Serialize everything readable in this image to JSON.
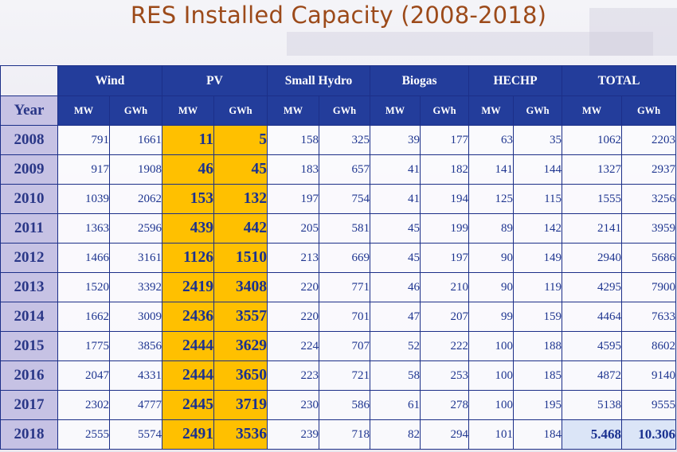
{
  "title": "RES Installed Capacity (2008-2018)",
  "year_label": "Year",
  "groups": [
    "Wind",
    "PV",
    "Small Hydro",
    "Biogas",
    "HECHP",
    "TOTAL"
  ],
  "units": [
    "MW",
    "GWh",
    "MW",
    "GWh",
    "MW",
    "GWh",
    "MW",
    "GWh",
    "MW",
    "GWh",
    "MW",
    "GWh"
  ],
  "colors": {
    "header": "#233d9b",
    "pv_highlight": "#ffc000",
    "year_cell": "#c6c2e4",
    "title": "#9c4a1a",
    "text": "#1e3590"
  },
  "rows": [
    {
      "year": "2008",
      "cells": [
        "791",
        "1661",
        "11",
        "5",
        "158",
        "325",
        "39",
        "177",
        "63",
        "35",
        "1062",
        "2203"
      ]
    },
    {
      "year": "2009",
      "cells": [
        "917",
        "1908",
        "46",
        "45",
        "183",
        "657",
        "41",
        "182",
        "141",
        "144",
        "1327",
        "2937"
      ]
    },
    {
      "year": "2010",
      "cells": [
        "1039",
        "2062",
        "153",
        "132",
        "197",
        "754",
        "41",
        "194",
        "125",
        "115",
        "1555",
        "3256"
      ]
    },
    {
      "year": "2011",
      "cells": [
        "1363",
        "2596",
        "439",
        "442",
        "205",
        "581",
        "45",
        "199",
        "89",
        "142",
        "2141",
        "3959"
      ]
    },
    {
      "year": "2012",
      "cells": [
        "1466",
        "3161",
        "1126",
        "1510",
        "213",
        "669",
        "45",
        "197",
        "90",
        "149",
        "2940",
        "5686"
      ]
    },
    {
      "year": "2013",
      "cells": [
        "1520",
        "3392",
        "2419",
        "3408",
        "220",
        "771",
        "46",
        "210",
        "90",
        "119",
        "4295",
        "7900"
      ]
    },
    {
      "year": "2014",
      "cells": [
        "1662",
        "3009",
        "2436",
        "3557",
        "220",
        "701",
        "47",
        "207",
        "99",
        "159",
        "4464",
        "7633"
      ]
    },
    {
      "year": "2015",
      "cells": [
        "1775",
        "3856",
        "2444",
        "3629",
        "224",
        "707",
        "52",
        "222",
        "100",
        "188",
        "4595",
        "8602"
      ]
    },
    {
      "year": "2016",
      "cells": [
        "2047",
        "4331",
        "2444",
        "3650",
        "223",
        "721",
        "58",
        "253",
        "100",
        "185",
        "4872",
        "9140"
      ]
    },
    {
      "year": "2017",
      "cells": [
        "2302",
        "4777",
        "2445",
        "3719",
        "230",
        "586",
        "61",
        "278",
        "100",
        "195",
        "5138",
        "9555"
      ]
    },
    {
      "year": "2018",
      "cells": [
        "2555",
        "5574",
        "2491",
        "3536",
        "239",
        "718",
        "82",
        "294",
        "101",
        "184",
        "5.468",
        "10.306"
      ]
    }
  ],
  "chart_data": {
    "type": "table",
    "title": "RES Installed Capacity (2008-2018)",
    "columns": [
      "Year",
      "Wind MW",
      "Wind GWh",
      "PV MW",
      "PV GWh",
      "Small Hydro MW",
      "Small Hydro GWh",
      "Biogas MW",
      "Biogas GWh",
      "HECHP MW",
      "HECHP GWh",
      "TOTAL MW",
      "TOTAL GWh"
    ],
    "rows": [
      [
        "2008",
        791,
        1661,
        11,
        5,
        158,
        325,
        39,
        177,
        63,
        35,
        1062,
        2203
      ],
      [
        "2009",
        917,
        1908,
        46,
        45,
        183,
        657,
        41,
        182,
        141,
        144,
        1327,
        2937
      ],
      [
        "2010",
        1039,
        2062,
        153,
        132,
        197,
        754,
        41,
        194,
        125,
        115,
        1555,
        3256
      ],
      [
        "2011",
        1363,
        2596,
        439,
        442,
        205,
        581,
        45,
        199,
        89,
        142,
        2141,
        3959
      ],
      [
        "2012",
        1466,
        3161,
        1126,
        1510,
        213,
        669,
        45,
        197,
        90,
        149,
        2940,
        5686
      ],
      [
        "2013",
        1520,
        3392,
        2419,
        3408,
        220,
        771,
        46,
        210,
        90,
        119,
        4295,
        7900
      ],
      [
        "2014",
        1662,
        3009,
        2436,
        3557,
        220,
        701,
        47,
        207,
        99,
        159,
        4464,
        7633
      ],
      [
        "2015",
        1775,
        3856,
        2444,
        3629,
        224,
        707,
        52,
        222,
        100,
        188,
        4595,
        8602
      ],
      [
        "2016",
        2047,
        4331,
        2444,
        3650,
        223,
        721,
        58,
        253,
        100,
        185,
        4872,
        9140
      ],
      [
        "2017",
        2302,
        4777,
        2445,
        3719,
        230,
        586,
        61,
        278,
        100,
        195,
        5138,
        9555
      ],
      [
        "2018",
        2555,
        5574,
        2491,
        3536,
        239,
        718,
        82,
        294,
        101,
        184,
        5468,
        10306
      ]
    ]
  }
}
